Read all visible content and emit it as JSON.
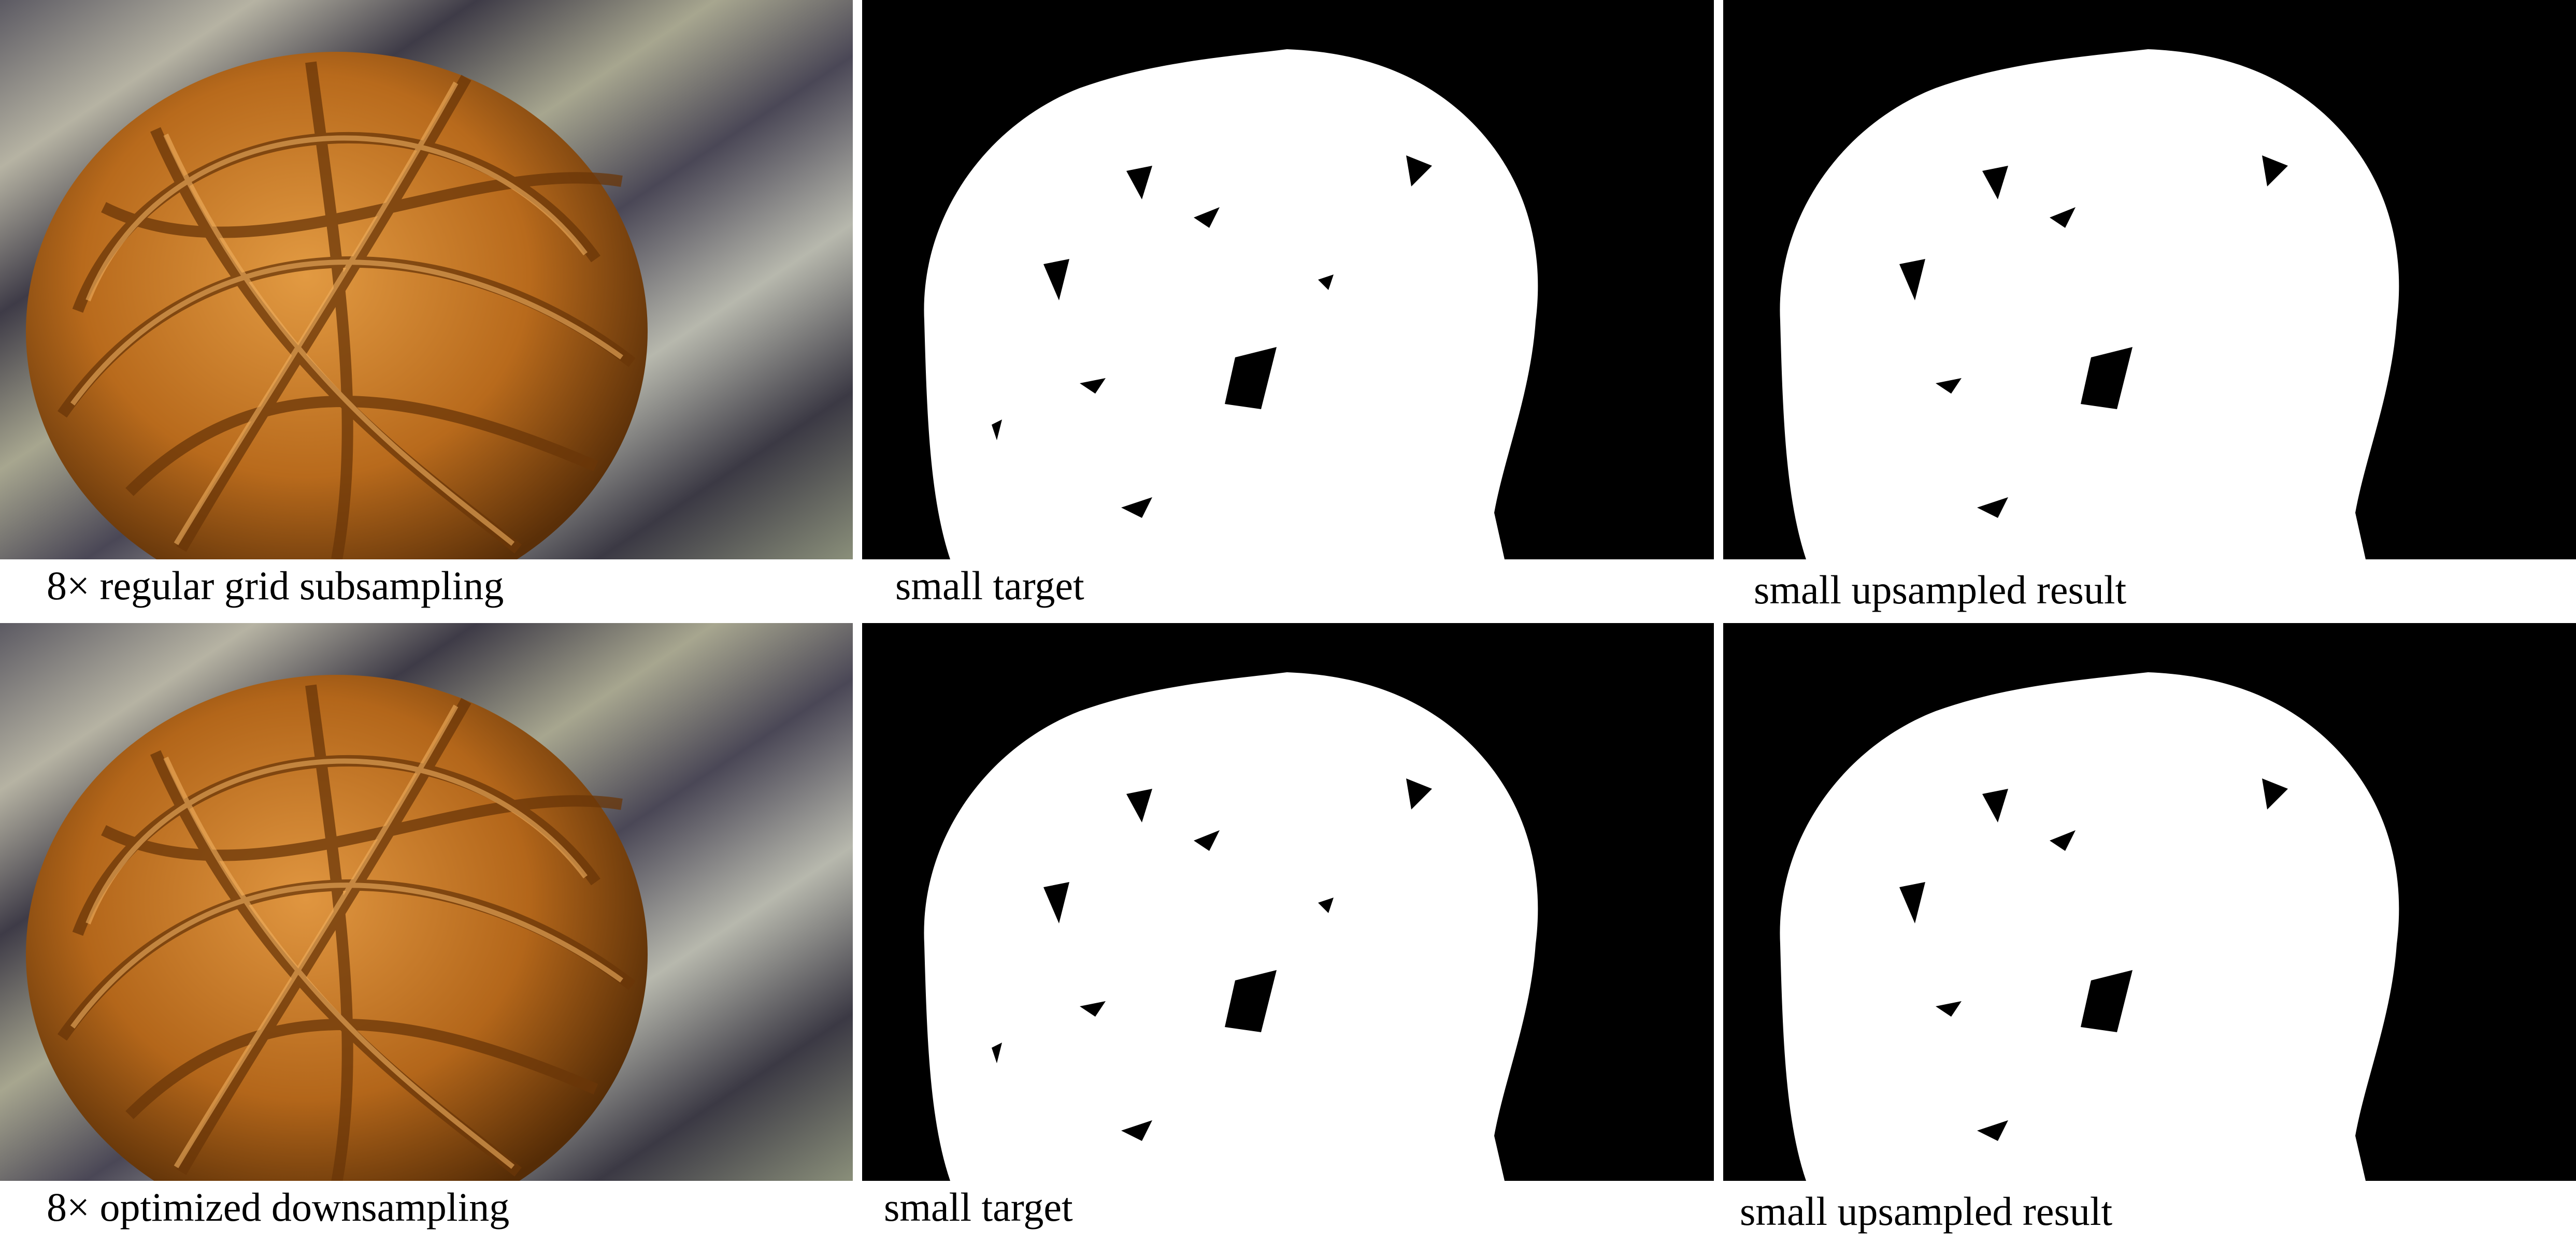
{
  "figure": {
    "rows": [
      {
        "photo_caption": "8× regular grid subsampling",
        "target_caption": "small target",
        "result_caption": "small upsampled result"
      },
      {
        "photo_caption": "8× optimized downsampling",
        "target_caption": "small target",
        "result_caption": "small upsampled result"
      }
    ]
  },
  "colors": {
    "wicker": "#c4761e",
    "wicker_dark": "#6a3608",
    "background_stripe_light": "#b7b4a6",
    "background_stripe_dark": "#3d3a45",
    "mask_foreground": "#ffffff",
    "mask_background": "#000000"
  }
}
